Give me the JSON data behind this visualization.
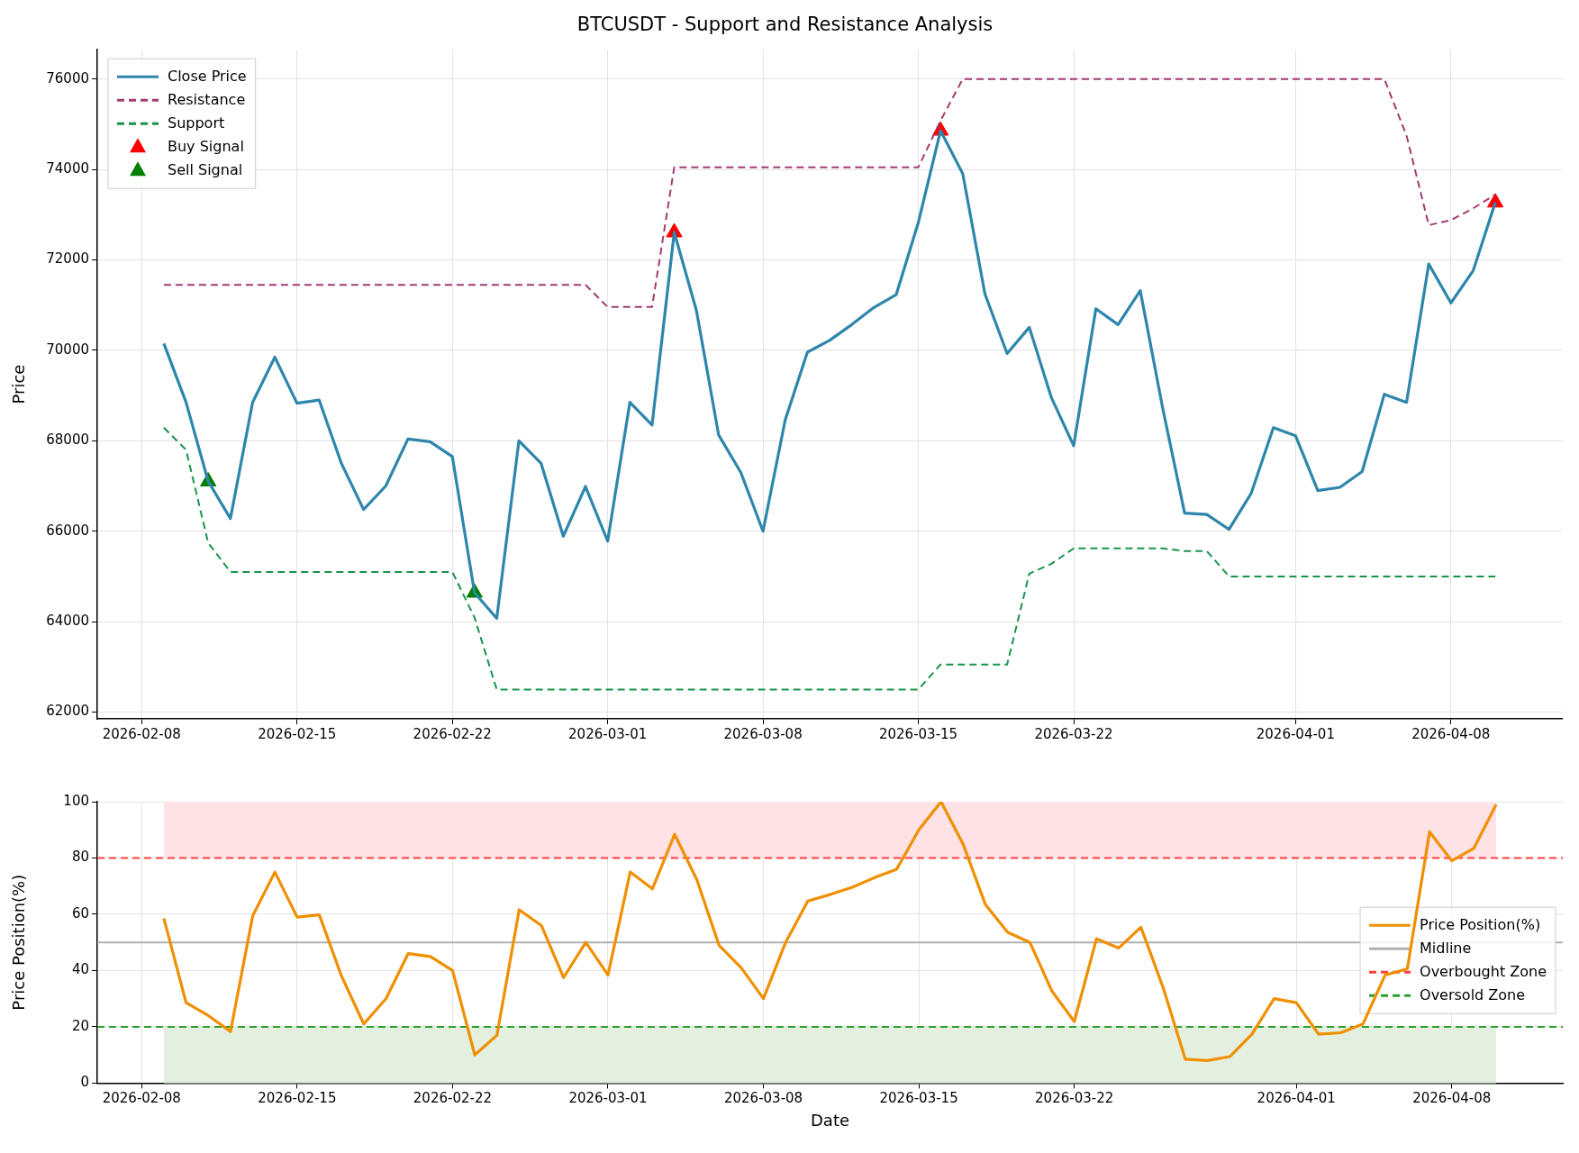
{
  "chart_data": [
    {
      "type": "line",
      "title": "BTCUSDT - Support and Resistance Analysis",
      "ylabel": "Price",
      "legend": "top left",
      "grid": true,
      "x": [
        "2026-02-09",
        "2026-02-10",
        "2026-02-11",
        "2026-02-12",
        "2026-02-13",
        "2026-02-14",
        "2026-02-15",
        "2026-02-16",
        "2026-02-17",
        "2026-02-18",
        "2026-02-19",
        "2026-02-20",
        "2026-02-21",
        "2026-02-22",
        "2026-02-23",
        "2026-02-24",
        "2026-02-25",
        "2026-02-26",
        "2026-02-27",
        "2026-02-28",
        "2026-03-01",
        "2026-03-02",
        "2026-03-03",
        "2026-03-04",
        "2026-03-05",
        "2026-03-06",
        "2026-03-07",
        "2026-03-08",
        "2026-03-09",
        "2026-03-10",
        "2026-03-11",
        "2026-03-12",
        "2026-03-13",
        "2026-03-14",
        "2026-03-15",
        "2026-03-16",
        "2026-03-17",
        "2026-03-18",
        "2026-03-19",
        "2026-03-20",
        "2026-03-21",
        "2026-03-22",
        "2026-03-23",
        "2026-03-24",
        "2026-03-25",
        "2026-03-26",
        "2026-03-27",
        "2026-03-28",
        "2026-03-29",
        "2026-03-30",
        "2026-03-31",
        "2026-04-01",
        "2026-04-02",
        "2026-04-03",
        "2026-04-04",
        "2026-04-05",
        "2026-04-06",
        "2026-04-07",
        "2026-04-08",
        "2026-04-09",
        "2026-04-10"
      ],
      "xlim": [
        "2026-02-06",
        "2026-04-13"
      ],
      "xticks": [
        "2026-02-08",
        "2026-02-15",
        "2026-02-22",
        "2026-03-01",
        "2026-03-08",
        "2026-03-15",
        "2026-03-22",
        "2026-04-01",
        "2026-04-08"
      ],
      "ylim": [
        61850,
        76650
      ],
      "yticks": [
        62000,
        64000,
        66000,
        68000,
        70000,
        72000,
        74000,
        76000
      ],
      "series": [
        {
          "name": "Close Price",
          "color": "#2e86ab",
          "values": [
            70150,
            68850,
            67100,
            66280,
            68850,
            69850,
            68830,
            68900,
            67500,
            66480,
            67000,
            68040,
            67980,
            67650,
            64640,
            64070,
            68000,
            67500,
            65890,
            66990,
            65780,
            68850,
            68350,
            72610,
            70880,
            68130,
            67300,
            66000,
            68460,
            69960,
            70220,
            70570,
            70950,
            71230,
            72830,
            74860,
            73910,
            71250,
            69930,
            70510,
            68950,
            67890,
            70920,
            70570,
            71320,
            68750,
            66400,
            66370,
            66040,
            66840,
            68290,
            68110,
            66900,
            66970,
            67320,
            69030,
            68850,
            71910,
            71050,
            71760,
            73270
          ]
        },
        {
          "name": "Resistance",
          "color": "#a23b72",
          "line_style": "dashed",
          "values": [
            71450,
            71450,
            71450,
            71450,
            71450,
            71450,
            71450,
            71450,
            71450,
            71450,
            71450,
            71450,
            71450,
            71450,
            71450,
            71450,
            71450,
            71450,
            71450,
            71450,
            70960,
            70960,
            70960,
            74050,
            74050,
            74050,
            74050,
            74050,
            74050,
            74050,
            74050,
            74050,
            74050,
            74050,
            74050,
            75080,
            76000,
            76000,
            76000,
            76000,
            76000,
            76000,
            76000,
            76000,
            76000,
            76000,
            76000,
            76000,
            76000,
            76000,
            76000,
            76000,
            76000,
            76000,
            76000,
            76000,
            74750,
            72770,
            72880,
            73140,
            73450
          ]
        },
        {
          "name": "Support",
          "color": "#18944a",
          "line_style": "dashed",
          "values": [
            68290,
            67800,
            65740,
            65100,
            65100,
            65100,
            65100,
            65100,
            65100,
            65100,
            65100,
            65100,
            65100,
            65100,
            64090,
            62500,
            62500,
            62500,
            62500,
            62500,
            62500,
            62500,
            62500,
            62500,
            62500,
            62500,
            62500,
            62500,
            62500,
            62500,
            62500,
            62500,
            62500,
            62500,
            62500,
            63050,
            63050,
            63050,
            63050,
            65060,
            65280,
            65620,
            65620,
            65620,
            65620,
            65620,
            65560,
            65560,
            65000,
            65000,
            65000,
            65000,
            65000,
            65000,
            65000,
            65000,
            65000,
            65000,
            65000,
            65000,
            65000
          ]
        },
        {
          "name": "Buy Signal",
          "type": "scatter",
          "marker": "triangle",
          "color": "#ff0000",
          "x": [
            "2026-03-04",
            "2026-03-16",
            "2026-04-10"
          ],
          "values": [
            72610,
            74860,
            73270
          ]
        },
        {
          "name": "Sell Signal",
          "type": "scatter",
          "marker": "triangle",
          "color": "#008000",
          "x": [
            "2026-02-11",
            "2026-02-23"
          ],
          "values": [
            67100,
            64640
          ]
        }
      ]
    },
    {
      "type": "line",
      "xlabel": "Date",
      "ylabel": "Price Position(%)",
      "legend": "right",
      "grid": true,
      "x": [
        "2026-02-09",
        "2026-02-10",
        "2026-02-11",
        "2026-02-12",
        "2026-02-13",
        "2026-02-14",
        "2026-02-15",
        "2026-02-16",
        "2026-02-17",
        "2026-02-18",
        "2026-02-19",
        "2026-02-20",
        "2026-02-21",
        "2026-02-22",
        "2026-02-23",
        "2026-02-24",
        "2026-02-25",
        "2026-02-26",
        "2026-02-27",
        "2026-02-28",
        "2026-03-01",
        "2026-03-02",
        "2026-03-03",
        "2026-03-04",
        "2026-03-05",
        "2026-03-06",
        "2026-03-07",
        "2026-03-08",
        "2026-03-09",
        "2026-03-10",
        "2026-03-11",
        "2026-03-12",
        "2026-03-13",
        "2026-03-14",
        "2026-03-15",
        "2026-03-16",
        "2026-03-17",
        "2026-03-18",
        "2026-03-19",
        "2026-03-20",
        "2026-03-21",
        "2026-03-22",
        "2026-03-23",
        "2026-03-24",
        "2026-03-25",
        "2026-03-26",
        "2026-03-27",
        "2026-03-28",
        "2026-03-29",
        "2026-03-30",
        "2026-03-31",
        "2026-04-01",
        "2026-04-02",
        "2026-04-03",
        "2026-04-04",
        "2026-04-05",
        "2026-04-06",
        "2026-04-07",
        "2026-04-08",
        "2026-04-09",
        "2026-04-10"
      ],
      "xlim": [
        "2026-02-06",
        "2026-04-13"
      ],
      "xticks": [
        "2026-02-08",
        "2026-02-15",
        "2026-02-22",
        "2026-03-01",
        "2026-03-08",
        "2026-03-15",
        "2026-03-22",
        "2026-04-01",
        "2026-04-08"
      ],
      "ylim": [
        0,
        100
      ],
      "yticks": [
        0,
        20,
        40,
        60,
        80,
        100
      ],
      "series": [
        {
          "name": "Price Position(%)",
          "color": "#f18f01",
          "values": [
            58.5,
            28.6,
            24,
            18.3,
            59.4,
            75,
            59,
            59.8,
            38,
            21,
            30,
            46,
            45,
            40,
            10,
            17,
            61.6,
            56,
            37.5,
            50,
            38.4,
            75,
            69,
            88.4,
            72.3,
            49,
            41,
            30,
            50,
            64.7,
            67,
            69.6,
            73,
            76,
            90,
            100,
            84.8,
            63.4,
            53.6,
            50,
            32.6,
            21.9,
            51.3,
            48,
            55.4,
            34,
            8.5,
            8,
            9.4,
            17.4,
            30,
            28.6,
            17.4,
            17.9,
            21,
            38.4,
            40.6,
            89.3,
            79,
            83.5,
            99
          ]
        }
      ],
      "ref_lines": [
        {
          "axis": "y",
          "value": 50,
          "label": "Midline",
          "color": "#b0b0b0",
          "line_style": "solid"
        },
        {
          "axis": "y",
          "value": 80,
          "label": "Overbought Zone",
          "color": "#ff4040",
          "line_style": "dashed"
        },
        {
          "axis": "y",
          "value": 20,
          "label": "Oversold Zone",
          "color": "#2ca02c",
          "line_style": "dashed"
        }
      ],
      "bands": [
        {
          "axis": "y",
          "from": 80,
          "to": 100,
          "color": "#ffe2e5"
        },
        {
          "axis": "y",
          "from": 0,
          "to": 20,
          "color": "#e3f0e0"
        }
      ]
    }
  ]
}
